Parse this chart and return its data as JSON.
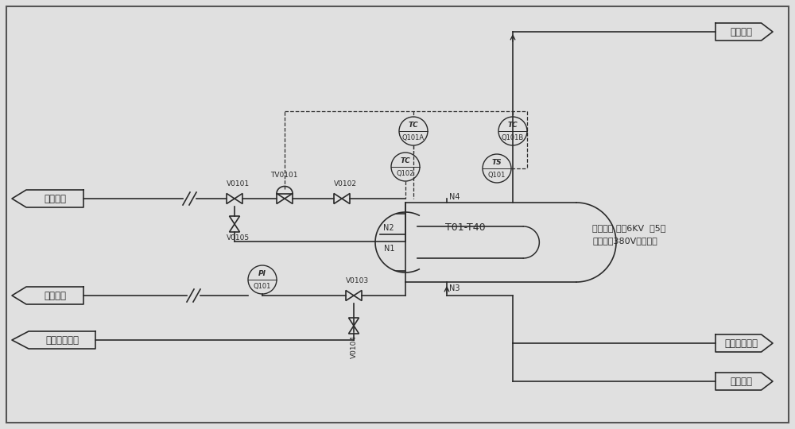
{
  "bg_color": "#e0e0e0",
  "line_color": "#2a2a2a",
  "labels": {
    "yi_ci_remei_1": "一次热媒",
    "yi_ci_remei_2": "一次热媒",
    "yi_ci_remei_paifang": "一次热媒排放",
    "er_ci_remei": "二次热媒",
    "er_ci_remei_paifang": "二次热媒排放",
    "ran_mei_tianchong": "燃煤填充",
    "T01_T40": "T01-T40",
    "N1": "N1",
    "N2": "N2",
    "N3": "N3",
    "N4": "N4",
    "TV0101": "TV0101",
    "V0101": "V0101",
    "V0102": "V0102",
    "V0103": "V0103",
    "V0104": "V0104",
    "V0105": "V0105",
    "PI_top": "PI",
    "PI_bot": "Q101",
    "TC_A_top": "TC",
    "TC_A_bot": "Q101A",
    "TC_B_top": "TC",
    "TC_B_bot": "Q101B",
    "TC_2_top": "TC",
    "TC_2_bot": "Q102",
    "TS_top": "TS",
    "TS_bot": "Q101",
    "elec_heater_1": "电加热炉 每组6KV  共5组",
    "elec_heater_2": "暂时考虑380V角换方式"
  }
}
